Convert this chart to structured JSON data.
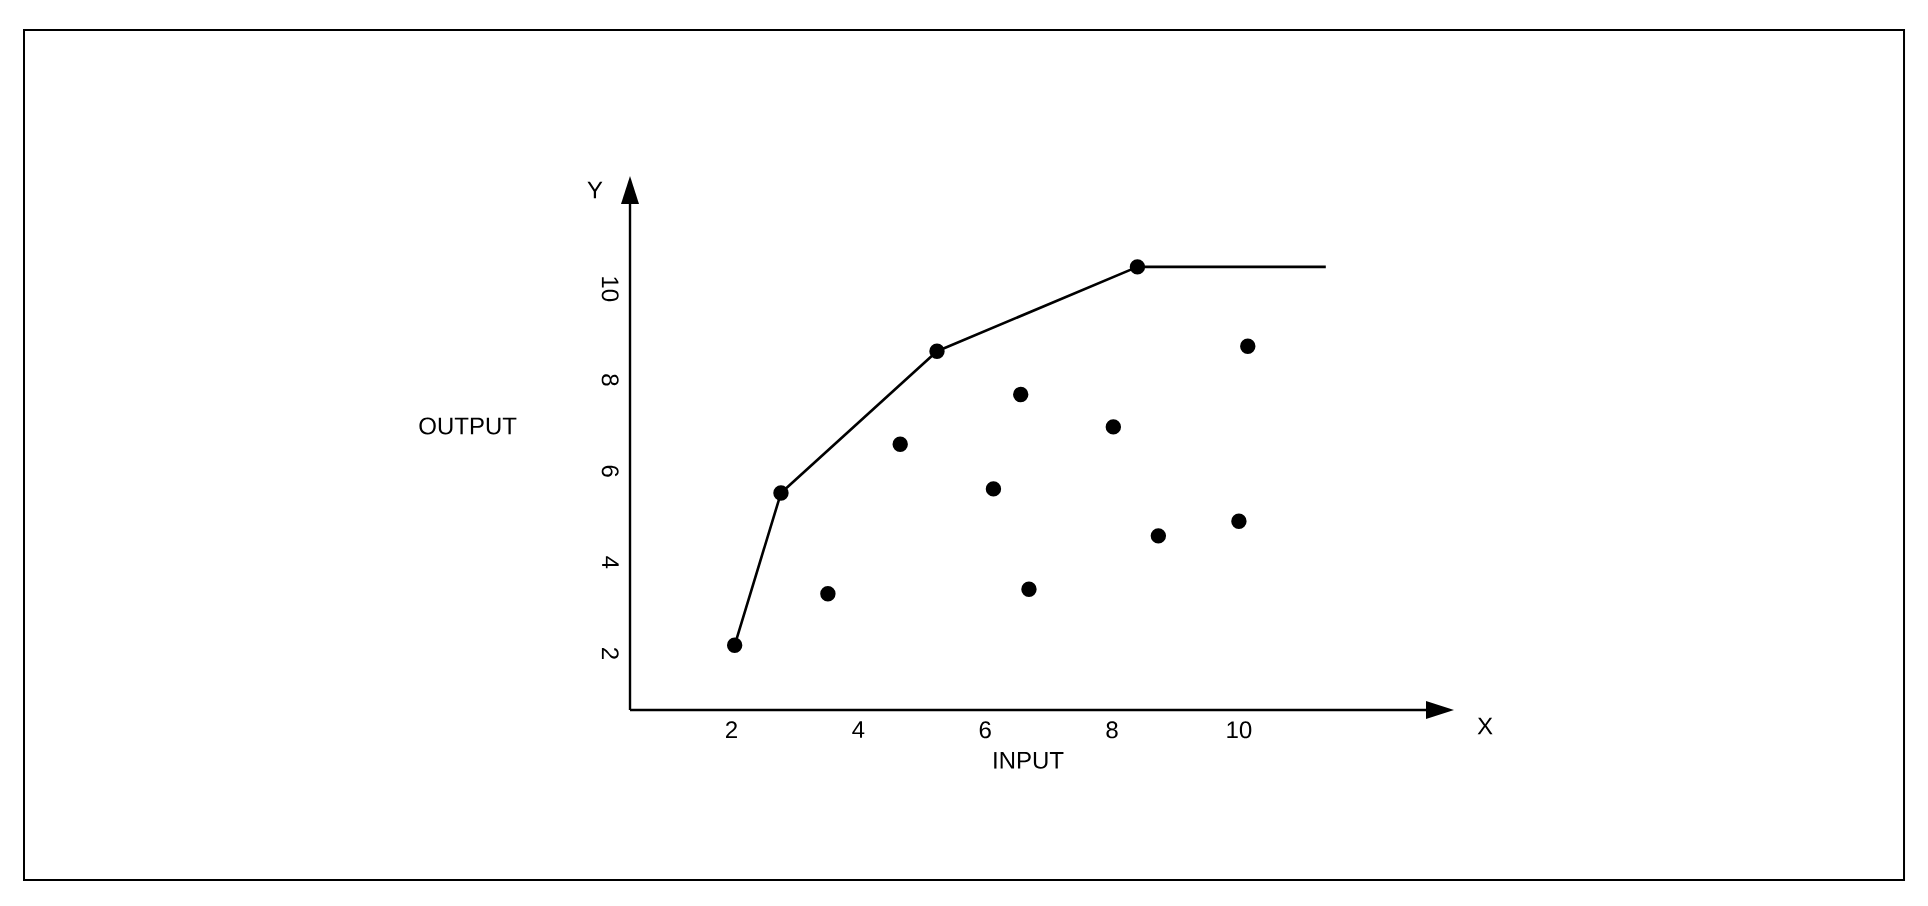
{
  "chart_data": {
    "type": "scatter",
    "xlabel": "INPUT",
    "ylabel": "OUTPUT",
    "annotations": [
      "X",
      "Y"
    ],
    "xlim": [
      0.4,
      12.95
    ],
    "ylim": [
      0.76,
      11.86
    ],
    "xticks": [
      2,
      4,
      6,
      8,
      10
    ],
    "yticks": [
      2,
      4,
      6,
      8,
      10
    ],
    "grid": false,
    "marker": "circle",
    "series": [
      {
        "type": "line",
        "color": "#000000",
        "marker": "none",
        "x": [
          2.05,
          2.78,
          5.24,
          8.4,
          11.37
        ],
        "values": [
          2.18,
          5.52,
          8.63,
          10.48,
          10.48
        ]
      },
      {
        "color": "#000000",
        "x": [
          2.05,
          2.78,
          5.24,
          8.4,
          3.52,
          4.66,
          6.13,
          6.56,
          6.69,
          8.02,
          8.73,
          10.0,
          10.14
        ],
        "values": [
          2.18,
          5.52,
          8.63,
          10.48,
          3.31,
          6.59,
          5.61,
          7.68,
          3.41,
          6.97,
          4.58,
          4.9,
          8.74
        ]
      }
    ]
  }
}
